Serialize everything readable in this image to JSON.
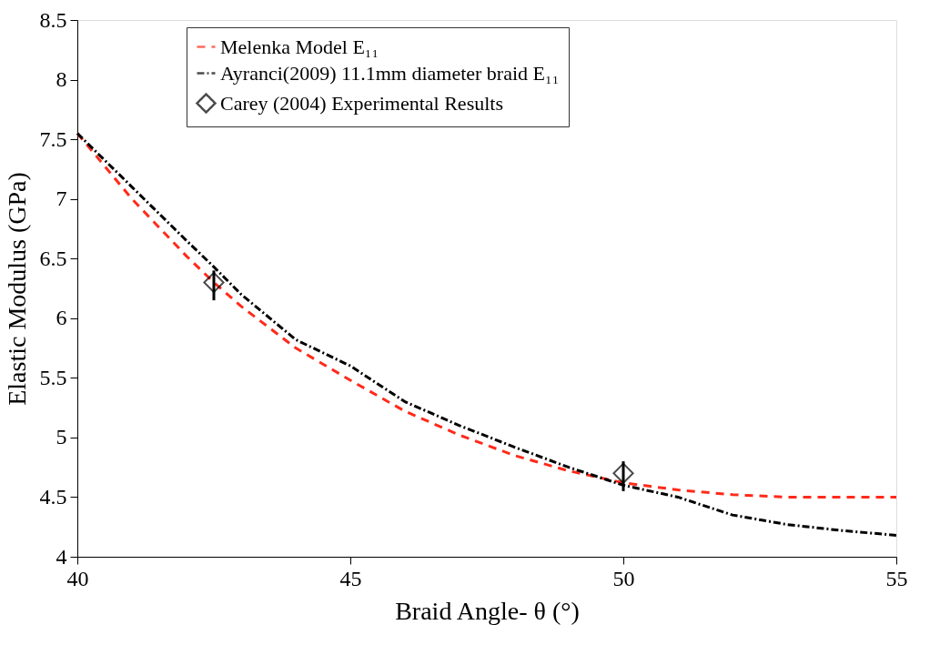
{
  "chart_data": {
    "type": "line",
    "xlabel": "Braid Angle- θ (°)",
    "ylabel": "Elastic Modulus (GPa)",
    "xlim": [
      40,
      55
    ],
    "xticks": [
      40,
      45,
      50,
      55
    ],
    "ylim": [
      4,
      8.5
    ],
    "yticks": [
      4,
      4.5,
      5,
      5.5,
      6,
      6.5,
      7,
      7.5,
      8,
      8.5
    ],
    "grid": false,
    "legend": "top",
    "series": [
      {
        "name": "Melenka Model E₁₁",
        "color": "#ff2a1a",
        "line_style": "dashed",
        "x": [
          40,
          41,
          42,
          42.5,
          43,
          44,
          45,
          46,
          47,
          48,
          49,
          50,
          51,
          52,
          53,
          54,
          55
        ],
        "values": [
          7.55,
          7.0,
          6.52,
          6.3,
          6.1,
          5.75,
          5.48,
          5.22,
          5.02,
          4.85,
          4.72,
          4.62,
          4.56,
          4.52,
          4.5,
          4.5,
          4.5
        ]
      },
      {
        "name": "Ayranci(2009) 11.1mm diameter braid E₁₁",
        "color": "#000000",
        "line_style": "dashdot",
        "x": [
          40,
          41,
          42,
          42.5,
          43,
          44,
          45,
          46,
          47,
          48,
          49,
          50,
          51,
          52,
          53,
          54,
          55
        ],
        "values": [
          7.55,
          7.1,
          6.65,
          6.43,
          6.2,
          5.82,
          5.6,
          5.3,
          5.1,
          4.92,
          4.75,
          4.6,
          4.5,
          4.35,
          4.27,
          4.22,
          4.18
        ]
      },
      {
        "name": "Carey (2004) Experimental Results",
        "type": "scatter",
        "marker": "diamond",
        "color": "#000000",
        "x": [
          42.5,
          50
        ],
        "values": [
          6.3,
          4.7
        ],
        "errors": [
          [
            6.15,
            6.4
          ],
          [
            4.55,
            4.8
          ]
        ]
      }
    ]
  }
}
